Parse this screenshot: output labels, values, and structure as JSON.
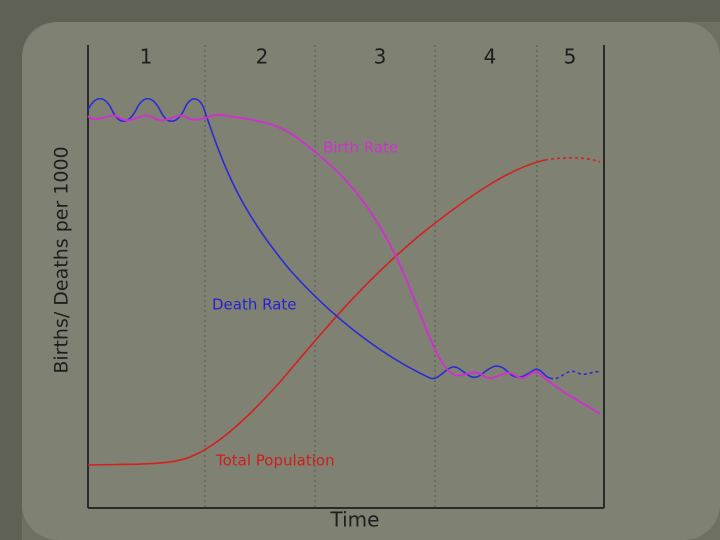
{
  "stages": [
    "1",
    "2",
    "3",
    "4",
    "5"
  ],
  "axes": {
    "y_label": "Births/ Deaths per 1000",
    "x_label": "Time"
  },
  "curves": {
    "birth_rate": "Birth Rate",
    "death_rate": "Death Rate",
    "total_population": "Total Population"
  }
}
